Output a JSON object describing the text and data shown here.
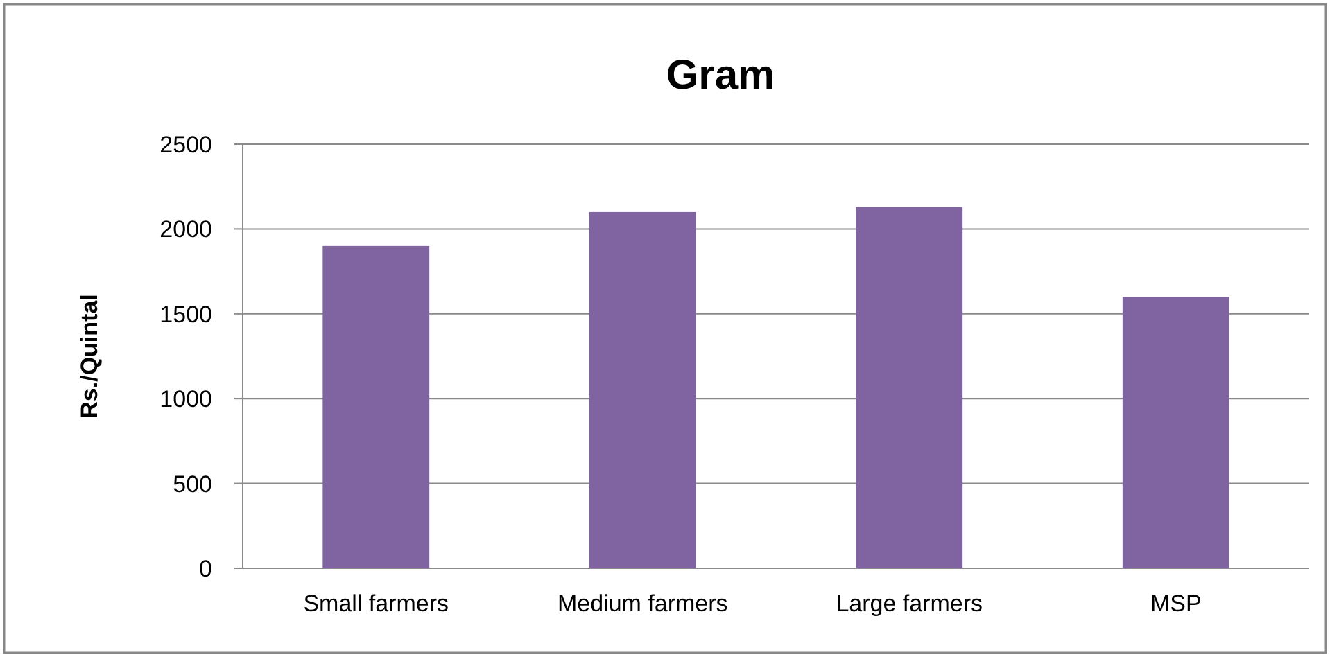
{
  "chart_data": {
    "type": "bar",
    "title": "Gram",
    "ylabel": "Rs./Quintal",
    "categories": [
      "Small farmers",
      "Medium farmers",
      "Large farmers",
      "MSP"
    ],
    "values": [
      1900,
      2100,
      2130,
      1600
    ],
    "color": "#8064a2",
    "ylim": [
      0,
      2500
    ],
    "yticks": [
      0,
      500,
      1000,
      1500,
      2000,
      2500
    ],
    "grid": "y"
  }
}
